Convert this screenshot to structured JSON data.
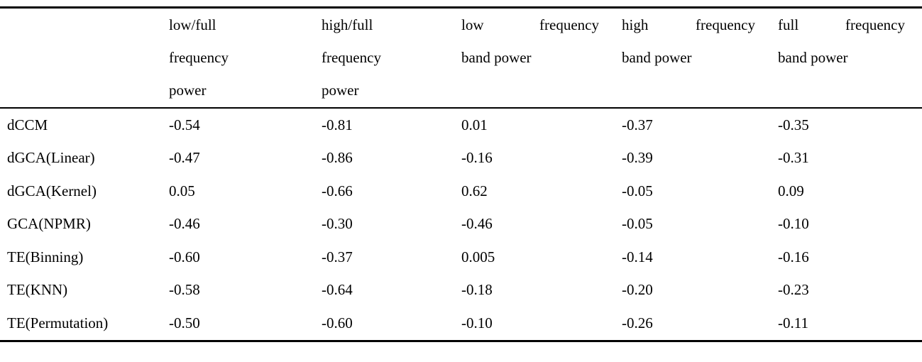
{
  "table": {
    "columns": [
      {
        "label": ""
      },
      {
        "lines": [
          "low/full",
          "frequency",
          "power"
        ]
      },
      {
        "lines": [
          "high/full",
          "frequency",
          "power"
        ]
      },
      {
        "line1_words": [
          "low",
          "frequency"
        ],
        "line2": "band power"
      },
      {
        "line1_words": [
          "high",
          "frequency"
        ],
        "line2": "band power"
      },
      {
        "line1_words": [
          "full",
          "frequency"
        ],
        "line2": "band power"
      }
    ],
    "rows": [
      {
        "label": "dCCM",
        "values": [
          "-0.54",
          "-0.81",
          "0.01",
          "-0.37",
          "-0.35"
        ]
      },
      {
        "label": "dGCA(Linear)",
        "values": [
          "-0.47",
          "-0.86",
          "-0.16",
          "-0.39",
          "-0.31"
        ]
      },
      {
        "label": "dGCA(Kernel)",
        "values": [
          "0.05",
          "-0.66",
          "0.62",
          "-0.05",
          "0.09"
        ]
      },
      {
        "label": "GCA(NPMR)",
        "values": [
          "-0.46",
          "-0.30",
          "-0.46",
          "-0.05",
          "-0.10"
        ]
      },
      {
        "label": "TE(Binning)",
        "values": [
          "-0.60",
          "-0.37",
          "0.005",
          "-0.14",
          "-0.16"
        ]
      },
      {
        "label": "TE(KNN)",
        "values": [
          "-0.58",
          "-0.64",
          "-0.18",
          "-0.20",
          "-0.23"
        ]
      },
      {
        "label": "TE(Permutation)",
        "values": [
          "-0.50",
          "-0.60",
          "-0.10",
          "-0.26",
          "-0.11"
        ]
      }
    ]
  },
  "chart_data": {
    "type": "table",
    "categories": [
      "low/full frequency power",
      "high/full frequency power",
      "low frequency band power",
      "high frequency band power",
      "full frequency band power"
    ],
    "series": [
      {
        "name": "dCCM",
        "values": [
          -0.54,
          -0.81,
          0.01,
          -0.37,
          -0.35
        ]
      },
      {
        "name": "dGCA(Linear)",
        "values": [
          -0.47,
          -0.86,
          -0.16,
          -0.39,
          -0.31
        ]
      },
      {
        "name": "dGCA(Kernel)",
        "values": [
          0.05,
          -0.66,
          0.62,
          -0.05,
          0.09
        ]
      },
      {
        "name": "GCA(NPMR)",
        "values": [
          -0.46,
          -0.3,
          -0.46,
          -0.05,
          -0.1
        ]
      },
      {
        "name": "TE(Binning)",
        "values": [
          -0.6,
          -0.37,
          0.005,
          -0.14,
          -0.16
        ]
      },
      {
        "name": "TE(KNN)",
        "values": [
          -0.58,
          -0.64,
          -0.18,
          -0.2,
          -0.23
        ]
      },
      {
        "name": "TE(Permutation)",
        "values": [
          -0.5,
          -0.6,
          -0.1,
          -0.26,
          -0.11
        ]
      }
    ],
    "title": "",
    "xlabel": "",
    "ylabel": ""
  }
}
